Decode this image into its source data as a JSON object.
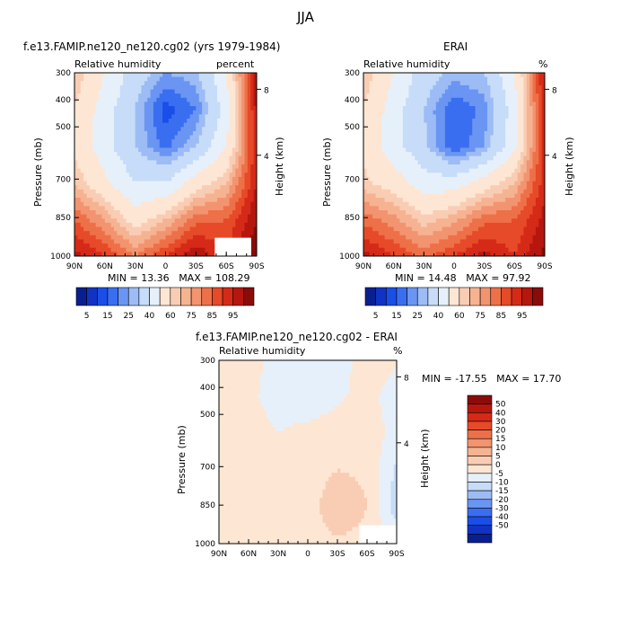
{
  "figure": {
    "title": "JJA"
  },
  "colors": {
    "levels_main": [
      "#0a1f8f",
      "#1133c4",
      "#1a4ee8",
      "#3a6ef0",
      "#6a95f2",
      "#9dbcf5",
      "#c7dcf8",
      "#e6f0fa",
      "#fde6d3",
      "#f9cdb4",
      "#f6b392",
      "#f29470",
      "#ee7049",
      "#e64a28",
      "#d52a18",
      "#b5170f",
      "#8a0c09"
    ],
    "levels_diff": [
      "#0a1f8f",
      "#1133c4",
      "#1a4ee8",
      "#3a6ef0",
      "#6a95f2",
      "#9dbcf5",
      "#c7dcf8",
      "#e6f0fa",
      "#fde6d3",
      "#f9cdb4",
      "#f6b392",
      "#f29470",
      "#ee7049",
      "#e64a28",
      "#d52a18",
      "#b5170f",
      "#8a0c09"
    ],
    "background": "#ffffff",
    "missing": "#ffffff"
  },
  "chart_data": [
    {
      "type": "heatmap",
      "id": "model",
      "title": "f.e13.FAMIP.ne120_ne120.cg02 (yrs 1979-1984)",
      "left_label": "Relative humidity",
      "right_label": "percent",
      "ylabel": "Pressure (mb)",
      "y2label": "Height (km)",
      "x_ticks": [
        "90N",
        "60N",
        "30N",
        "0",
        "30S",
        "60S",
        "90S"
      ],
      "y_ticks": [
        "300",
        "400",
        "500",
        "700",
        "850",
        "1000"
      ],
      "y2_ticks": [
        "8",
        "4"
      ],
      "stats": {
        "min_label": "MIN =",
        "min": "13.36",
        "max_label": "MAX =",
        "max": "108.29"
      },
      "colorbar_labels": [
        "5",
        "15",
        "25",
        "40",
        "60",
        "75",
        "85",
        "95"
      ],
      "x": [
        -90,
        -60,
        -30,
        0,
        30,
        60,
        90
      ],
      "y": [
        300,
        400,
        500,
        700,
        850,
        1000
      ],
      "z": [
        [
          65,
          50,
          35,
          25,
          28,
          50,
          95
        ],
        [
          60,
          45,
          30,
          12,
          20,
          45,
          92
        ],
        [
          58,
          44,
          30,
          18,
          30,
          50,
          90
        ],
        [
          65,
          52,
          40,
          40,
          55,
          65,
          90
        ],
        [
          80,
          70,
          55,
          65,
          78,
          80,
          95
        ],
        [
          92,
          85,
          75,
          85,
          95,
          85,
          100
        ]
      ]
    },
    {
      "type": "heatmap",
      "id": "obs",
      "title": "ERAI",
      "left_label": "Relative humidity",
      "right_label": "%",
      "ylabel": "Pressure (mb)",
      "y2label": "Height (km)",
      "x_ticks": [
        "90N",
        "60N",
        "30N",
        "0",
        "30S",
        "60S",
        "90S"
      ],
      "y_ticks": [
        "300",
        "400",
        "500",
        "700",
        "850",
        "1000"
      ],
      "y2_ticks": [
        "8",
        "4"
      ],
      "stats": {
        "min_label": "MIN =",
        "min": "14.48",
        "max_label": "MAX =",
        "max": "97.92"
      },
      "colorbar_labels": [
        "5",
        "15",
        "25",
        "40",
        "60",
        "75",
        "85",
        "95"
      ],
      "x": [
        -90,
        -60,
        -30,
        0,
        30,
        60,
        90
      ],
      "y": [
        300,
        400,
        500,
        700,
        850,
        1000
      ],
      "z": [
        [
          65,
          50,
          35,
          28,
          30,
          50,
          92
        ],
        [
          60,
          45,
          30,
          15,
          22,
          45,
          90
        ],
        [
          58,
          44,
          32,
          15,
          25,
          48,
          88
        ],
        [
          62,
          55,
          45,
          45,
          55,
          65,
          88
        ],
        [
          78,
          72,
          62,
          68,
          78,
          80,
          92
        ],
        [
          92,
          85,
          78,
          85,
          92,
          85,
          97
        ]
      ]
    },
    {
      "type": "heatmap",
      "id": "diff",
      "title": "f.e13.FAMIP.ne120_ne120.cg02 - ERAI",
      "left_label": "Relative humidity",
      "right_label": "%",
      "ylabel": "Pressure (mb)",
      "y2label": "Height (km)",
      "x_ticks": [
        "90N",
        "60N",
        "30N",
        "0",
        "30S",
        "60S",
        "90S"
      ],
      "y_ticks": [
        "300",
        "400",
        "500",
        "700",
        "850",
        "1000"
      ],
      "y2_ticks": [
        "8",
        "4"
      ],
      "stats": {
        "min_label": "MIN =",
        "min": "-17.55",
        "max_label": "MAX =",
        "max": "17.70"
      },
      "colorbar_labels": [
        "50",
        "40",
        "30",
        "20",
        "15",
        "10",
        "5",
        "0",
        "-5",
        "-10",
        "-15",
        "-20",
        "-30",
        "-40",
        "-50"
      ],
      "x": [
        -90,
        -60,
        -30,
        0,
        30,
        60,
        90
      ],
      "y": [
        300,
        400,
        500,
        700,
        850,
        1000
      ],
      "z": [
        [
          0,
          2,
          -2,
          -3,
          -2,
          2,
          1
        ],
        [
          2,
          1,
          -2,
          -4,
          -1,
          2,
          -3
        ],
        [
          2,
          2,
          0,
          2,
          3,
          3,
          -2
        ],
        [
          3,
          2,
          1,
          2,
          5,
          4,
          -6
        ],
        [
          2,
          3,
          2,
          2,
          10,
          5,
          -8
        ],
        [
          3,
          4,
          5,
          2,
          4,
          3,
          0
        ]
      ]
    }
  ]
}
